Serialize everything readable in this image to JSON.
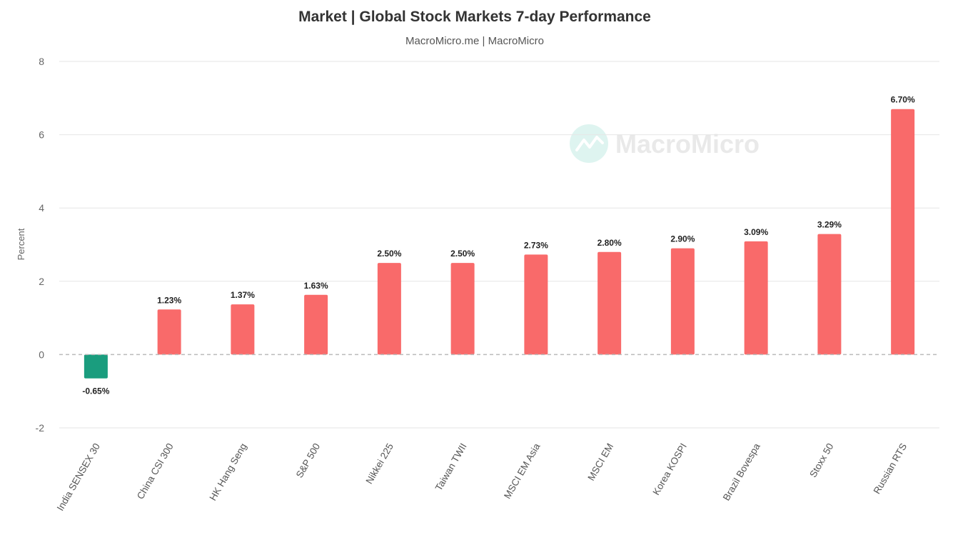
{
  "chart_data": {
    "type": "bar",
    "title": "Market | Global Stock Markets 7-day Performance",
    "subtitle": "MacroMicro.me | MacroMicro",
    "ylabel": "Percent",
    "xlabel": "",
    "ylim": [
      -2,
      8
    ],
    "yticks": [
      -2,
      0,
      2,
      4,
      6,
      8
    ],
    "grid": true,
    "categories": [
      "India SENSEX 30",
      "China CSI 300",
      "HK Hang Seng",
      "S&P 500",
      "Nikkei 225",
      "Taiwan TWII",
      "MSCI EM Asia",
      "MSCI EM",
      "Korea KOSPI",
      "Brazil Bovespa",
      "Stoxx 50",
      "Russian RTS"
    ],
    "values": [
      -0.65,
      1.23,
      1.37,
      1.63,
      2.5,
      2.5,
      2.73,
      2.8,
      2.9,
      3.09,
      3.29,
      6.7
    ],
    "data_labels": [
      "-0.65%",
      "1.23%",
      "1.37%",
      "1.63%",
      "2.50%",
      "2.50%",
      "2.73%",
      "2.80%",
      "2.90%",
      "3.09%",
      "3.29%",
      "6.70%"
    ],
    "colors": {
      "positive": "#f96a6a",
      "negative": "#1a9d7e",
      "zero_line": "#bbbbbb",
      "grid": "#e6e6e6"
    },
    "watermark": "MacroMicro"
  }
}
